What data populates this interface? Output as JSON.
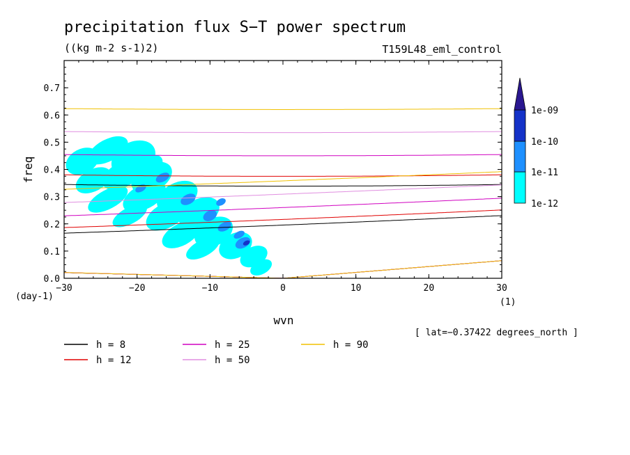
{
  "chart_data": {
    "type": "contour",
    "title": "precipitation flux S−T power spectrum",
    "units": "((kg m-2 s-1)2)",
    "experiment": "T159L48_eml_control",
    "xlabel": "wvn",
    "ylabel": "freq",
    "x_unit": "(1)",
    "y_unit": "(day-1)",
    "xlim": [
      -30,
      30
    ],
    "ylim": [
      0,
      0.8
    ],
    "xticks": [
      -30,
      -20,
      -10,
      0,
      10,
      20,
      30
    ],
    "xtick_labels": [
      "−30",
      "−20",
      "−10",
      "0",
      "10",
      "20",
      "30"
    ],
    "yticks": [
      0,
      0.1,
      0.2,
      0.3,
      0.4,
      0.5,
      0.6,
      0.7
    ],
    "ytick_labels": [
      "0.0",
      "0.1",
      "0.2",
      "0.3",
      "0.4",
      "0.5",
      "0.6",
      "0.7"
    ],
    "lat_note": "[ lat=−0.37422 degrees_north ]",
    "colorbar": {
      "levels": [
        "1e-12",
        "1e-11",
        "1e-10",
        "1e-09"
      ],
      "colors": [
        "#00ffff",
        "#1e90ff",
        "#1432c8",
        "#2a1790"
      ]
    },
    "shading_blobs": [
      {
        "x": -27.5,
        "y": 0.43,
        "rx": 2.4,
        "ry": 0.045,
        "level": 0
      },
      {
        "x": -24.0,
        "y": 0.47,
        "rx": 3.0,
        "ry": 0.04,
        "level": 0
      },
      {
        "x": -20.5,
        "y": 0.44,
        "rx": 3.2,
        "ry": 0.06,
        "level": 0
      },
      {
        "x": -26.0,
        "y": 0.36,
        "rx": 2.6,
        "ry": 0.04,
        "level": 0
      },
      {
        "x": -22.0,
        "y": 0.38,
        "rx": 3.0,
        "ry": 0.045,
        "level": 0
      },
      {
        "x": -18.0,
        "y": 0.37,
        "rx": 3.0,
        "ry": 0.05,
        "level": 0
      },
      {
        "x": -24.0,
        "y": 0.29,
        "rx": 3.0,
        "ry": 0.035,
        "level": 0
      },
      {
        "x": -19.0,
        "y": 0.3,
        "rx": 3.2,
        "ry": 0.045,
        "level": 0
      },
      {
        "x": -14.5,
        "y": 0.3,
        "rx": 3.0,
        "ry": 0.05,
        "level": 0
      },
      {
        "x": -21.0,
        "y": 0.23,
        "rx": 2.6,
        "ry": 0.03,
        "level": 0
      },
      {
        "x": -16.0,
        "y": 0.23,
        "rx": 3.0,
        "ry": 0.045,
        "level": 0
      },
      {
        "x": -11.5,
        "y": 0.24,
        "rx": 3.0,
        "ry": 0.05,
        "level": 0
      },
      {
        "x": -14.0,
        "y": 0.16,
        "rx": 2.8,
        "ry": 0.04,
        "level": 0
      },
      {
        "x": -9.5,
        "y": 0.17,
        "rx": 2.8,
        "ry": 0.05,
        "level": 0
      },
      {
        "x": -6.5,
        "y": 0.12,
        "rx": 2.4,
        "ry": 0.045,
        "level": 0
      },
      {
        "x": -4.0,
        "y": 0.08,
        "rx": 2.0,
        "ry": 0.035,
        "level": 0
      },
      {
        "x": -11.0,
        "y": 0.11,
        "rx": 2.5,
        "ry": 0.03,
        "level": 0
      },
      {
        "x": -18.0,
        "y": 0.42,
        "rx": 1.6,
        "ry": 0.03,
        "level": 0
      },
      {
        "x": -3.0,
        "y": 0.04,
        "rx": 1.6,
        "ry": 0.025,
        "level": 0
      },
      {
        "x": -16.5,
        "y": 0.37,
        "rx": 1.0,
        "ry": 0.015,
        "level": 1
      },
      {
        "x": -13.0,
        "y": 0.29,
        "rx": 1.1,
        "ry": 0.018,
        "level": 1
      },
      {
        "x": -10.0,
        "y": 0.23,
        "rx": 1.0,
        "ry": 0.018,
        "level": 1
      },
      {
        "x": -8.0,
        "y": 0.19,
        "rx": 1.0,
        "ry": 0.015,
        "level": 1
      },
      {
        "x": -5.5,
        "y": 0.13,
        "rx": 1.1,
        "ry": 0.018,
        "level": 1
      },
      {
        "x": -19.5,
        "y": 0.33,
        "rx": 0.8,
        "ry": 0.012,
        "level": 1
      },
      {
        "x": -6.0,
        "y": 0.16,
        "rx": 0.8,
        "ry": 0.012,
        "level": 1
      },
      {
        "x": -8.5,
        "y": 0.28,
        "rx": 0.7,
        "ry": 0.012,
        "level": 1
      },
      {
        "x": -5.0,
        "y": 0.13,
        "rx": 0.5,
        "ry": 0.008,
        "level": 2
      }
    ],
    "dispersion_curves": [
      {
        "name": "h =  8",
        "h": 8,
        "color": "#000000"
      },
      {
        "name": "h = 12",
        "h": 12,
        "color": "#e00000"
      },
      {
        "name": "h = 25",
        "h": 25,
        "color": "#d000c0"
      },
      {
        "name": "h = 50",
        "h": 50,
        "color": "#e08ee0"
      },
      {
        "name": "h = 90",
        "h": 90,
        "color": "#f0c000"
      }
    ]
  },
  "legend": [
    {
      "label": "h =  8",
      "color": "#000000"
    },
    {
      "label": "h = 12",
      "color": "#e00000"
    },
    {
      "label": "h = 25",
      "color": "#d000c0"
    },
    {
      "label": "h = 50",
      "color": "#e08ee0"
    },
    {
      "label": "h = 90",
      "color": "#f0c000"
    }
  ]
}
